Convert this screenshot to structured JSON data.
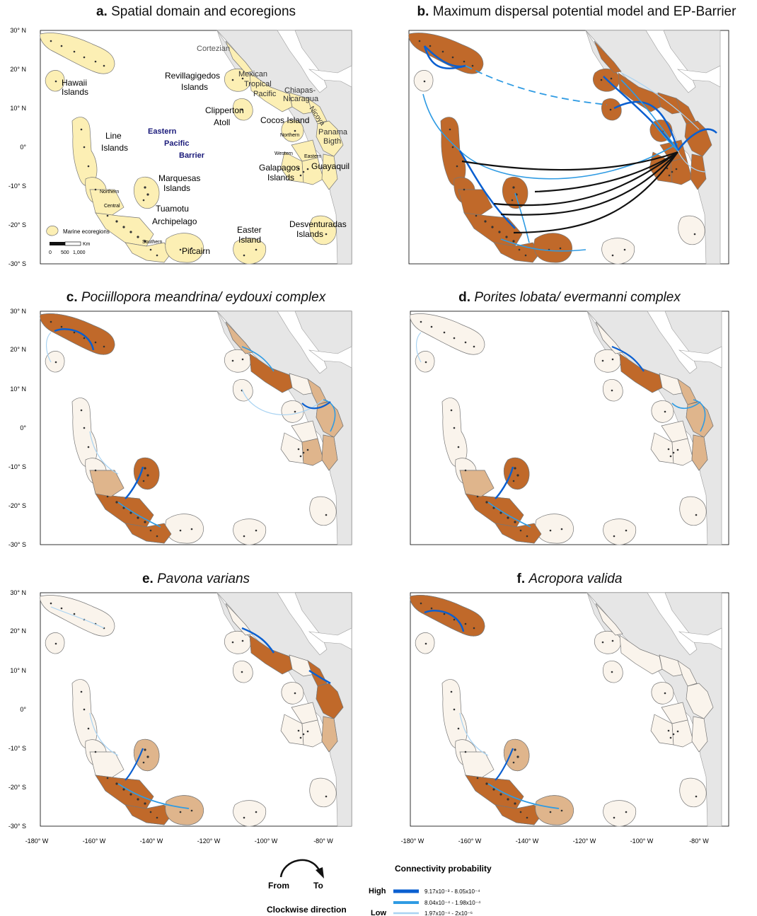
{
  "panels": [
    {
      "letter": "a.",
      "title": "Spatial domain and ecoregions",
      "italic": false
    },
    {
      "letter": "b.",
      "title": "Maximum dispersal potential model and EP-Barrier",
      "italic": false
    },
    {
      "letter": "c.",
      "title": "Pociillopora meandrina/ eydouxi complex",
      "italic": true
    },
    {
      "letter": "d.",
      "title": "Porites lobata/ evermanni complex",
      "italic": true
    },
    {
      "letter": "e.",
      "title": "Pavona varians",
      "italic": true
    },
    {
      "letter": "f.",
      "title": "Acropora valida",
      "italic": true
    }
  ],
  "lat_ticks": [
    "30° N",
    "20° N",
    "10° N",
    "0°",
    "-10° S",
    "-20° S",
    "-30° S"
  ],
  "lon_ticks": [
    "-180° W",
    "-160° W",
    "-140° W",
    "-120° W",
    "-100° W",
    "-80° W"
  ],
  "ecoregion_labels": {
    "hawaii": [
      "Hawaii",
      "Islands"
    ],
    "line": [
      "Line",
      "Islands"
    ],
    "marquesas": [
      "Marquesas",
      "Islands"
    ],
    "tuamotu": [
      "Tuamotu",
      "Archipelago"
    ],
    "tuamotu_sub": [
      "Northern",
      "Central",
      "Southern"
    ],
    "pitcairn": "Pitcairn",
    "easter": [
      "Easter",
      "Island"
    ],
    "desventuradas": [
      "Desventuradas",
      "Islands"
    ],
    "clipperton": [
      "Clipperton",
      "Atoll"
    ],
    "revillagigedos": [
      "Revillagigedos",
      "Islands"
    ],
    "cortezian": "Cortezian",
    "mexican": [
      "Mexican",
      "Tropical",
      "Pacific"
    ],
    "chiapas": [
      "Chiapas-",
      "Nicaragua"
    ],
    "nicoya": "Nicoya",
    "cocos": "Cocos Island",
    "panama": [
      "Panama",
      "Bigth"
    ],
    "galapagos": [
      "Galapagos",
      "Islands"
    ],
    "galapagos_sub": [
      "Northern",
      "Western",
      "Eastern"
    ],
    "guayaquil": "Guayaquil",
    "barrier": [
      "Eastern",
      "Pacific",
      "Barrier"
    ]
  },
  "map_legend": {
    "swatch_label": "Marine ecoregions",
    "scale_unit": "Km",
    "scale_ticks": [
      "0",
      "500",
      "1,000"
    ]
  },
  "direction_legend": {
    "from": "From",
    "to": "To",
    "caption": "Clockwise direction"
  },
  "connectivity_legend": {
    "title": "Connectivity probability",
    "high": "High",
    "low": "Low",
    "classes": [
      {
        "range": "9.17x10⁻³ - 8.05x10⁻⁴",
        "color": "#0a5fd0"
      },
      {
        "range": "8.04x10⁻⁴ - 1.98x10⁻⁴",
        "color": "#2f9be3"
      },
      {
        "range": "1.97x10⁻⁴ - 2x10⁻⁶",
        "color": "#a9d3f2"
      }
    ]
  },
  "colors": {
    "land": "#e6e6e6",
    "ecoregion_fill": "#fcefb4",
    "high_source": "#c0692a",
    "mid_source": "#dfb58c",
    "low_source": "#faf4ec",
    "barrier_text": "#1a1a7a"
  }
}
